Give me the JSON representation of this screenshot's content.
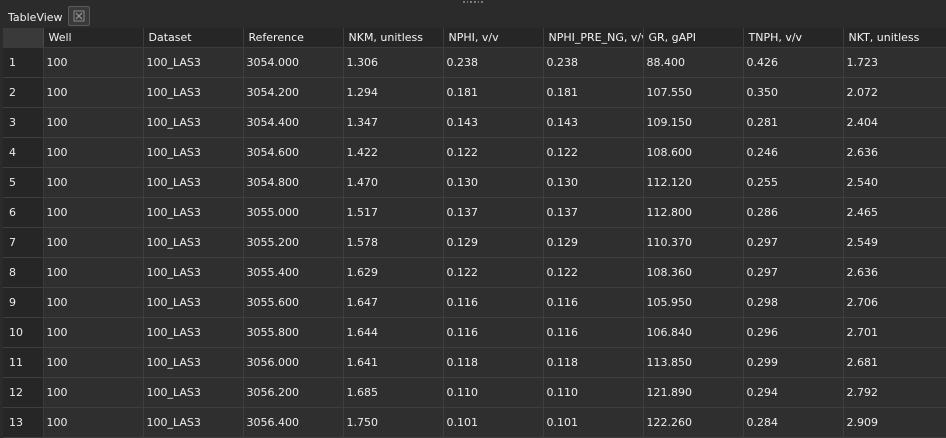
{
  "tab": {
    "title": "TableView",
    "close_icon": "close-icon"
  },
  "table": {
    "columns": [
      "Well",
      "Dataset",
      "Reference",
      "NKM, unitless",
      "NPHI, v/v",
      "NPHI_PRE_NG, v/v",
      "GR, gAPI",
      "TNPH, v/v",
      "NKT, unitless"
    ],
    "rows": [
      {
        "num": "1",
        "cells": [
          "100",
          "100_LAS3",
          "3054.000",
          "1.306",
          "0.238",
          "0.238",
          "88.400",
          "0.426",
          "1.723"
        ]
      },
      {
        "num": "2",
        "cells": [
          "100",
          "100_LAS3",
          "3054.200",
          "1.294",
          "0.181",
          "0.181",
          "107.550",
          "0.350",
          "2.072"
        ]
      },
      {
        "num": "3",
        "cells": [
          "100",
          "100_LAS3",
          "3054.400",
          "1.347",
          "0.143",
          "0.143",
          "109.150",
          "0.281",
          "2.404"
        ]
      },
      {
        "num": "4",
        "cells": [
          "100",
          "100_LAS3",
          "3054.600",
          "1.422",
          "0.122",
          "0.122",
          "108.600",
          "0.246",
          "2.636"
        ]
      },
      {
        "num": "5",
        "cells": [
          "100",
          "100_LAS3",
          "3054.800",
          "1.470",
          "0.130",
          "0.130",
          "112.120",
          "0.255",
          "2.540"
        ]
      },
      {
        "num": "6",
        "cells": [
          "100",
          "100_LAS3",
          "3055.000",
          "1.517",
          "0.137",
          "0.137",
          "112.800",
          "0.286",
          "2.465"
        ]
      },
      {
        "num": "7",
        "cells": [
          "100",
          "100_LAS3",
          "3055.200",
          "1.578",
          "0.129",
          "0.129",
          "110.370",
          "0.297",
          "2.549"
        ]
      },
      {
        "num": "8",
        "cells": [
          "100",
          "100_LAS3",
          "3055.400",
          "1.629",
          "0.122",
          "0.122",
          "108.360",
          "0.297",
          "2.636"
        ]
      },
      {
        "num": "9",
        "cells": [
          "100",
          "100_LAS3",
          "3055.600",
          "1.647",
          "0.116",
          "0.116",
          "105.950",
          "0.298",
          "2.706"
        ]
      },
      {
        "num": "10",
        "cells": [
          "100",
          "100_LAS3",
          "3055.800",
          "1.644",
          "0.116",
          "0.116",
          "106.840",
          "0.296",
          "2.701"
        ]
      },
      {
        "num": "11",
        "cells": [
          "100",
          "100_LAS3",
          "3056.000",
          "1.641",
          "0.118",
          "0.118",
          "113.850",
          "0.299",
          "2.681"
        ]
      },
      {
        "num": "12",
        "cells": [
          "100",
          "100_LAS3",
          "3056.200",
          "1.685",
          "0.110",
          "0.110",
          "121.890",
          "0.294",
          "2.792"
        ]
      },
      {
        "num": "13",
        "cells": [
          "100",
          "100_LAS3",
          "3056.400",
          "1.750",
          "0.101",
          "0.101",
          "122.260",
          "0.284",
          "2.909"
        ]
      }
    ]
  }
}
